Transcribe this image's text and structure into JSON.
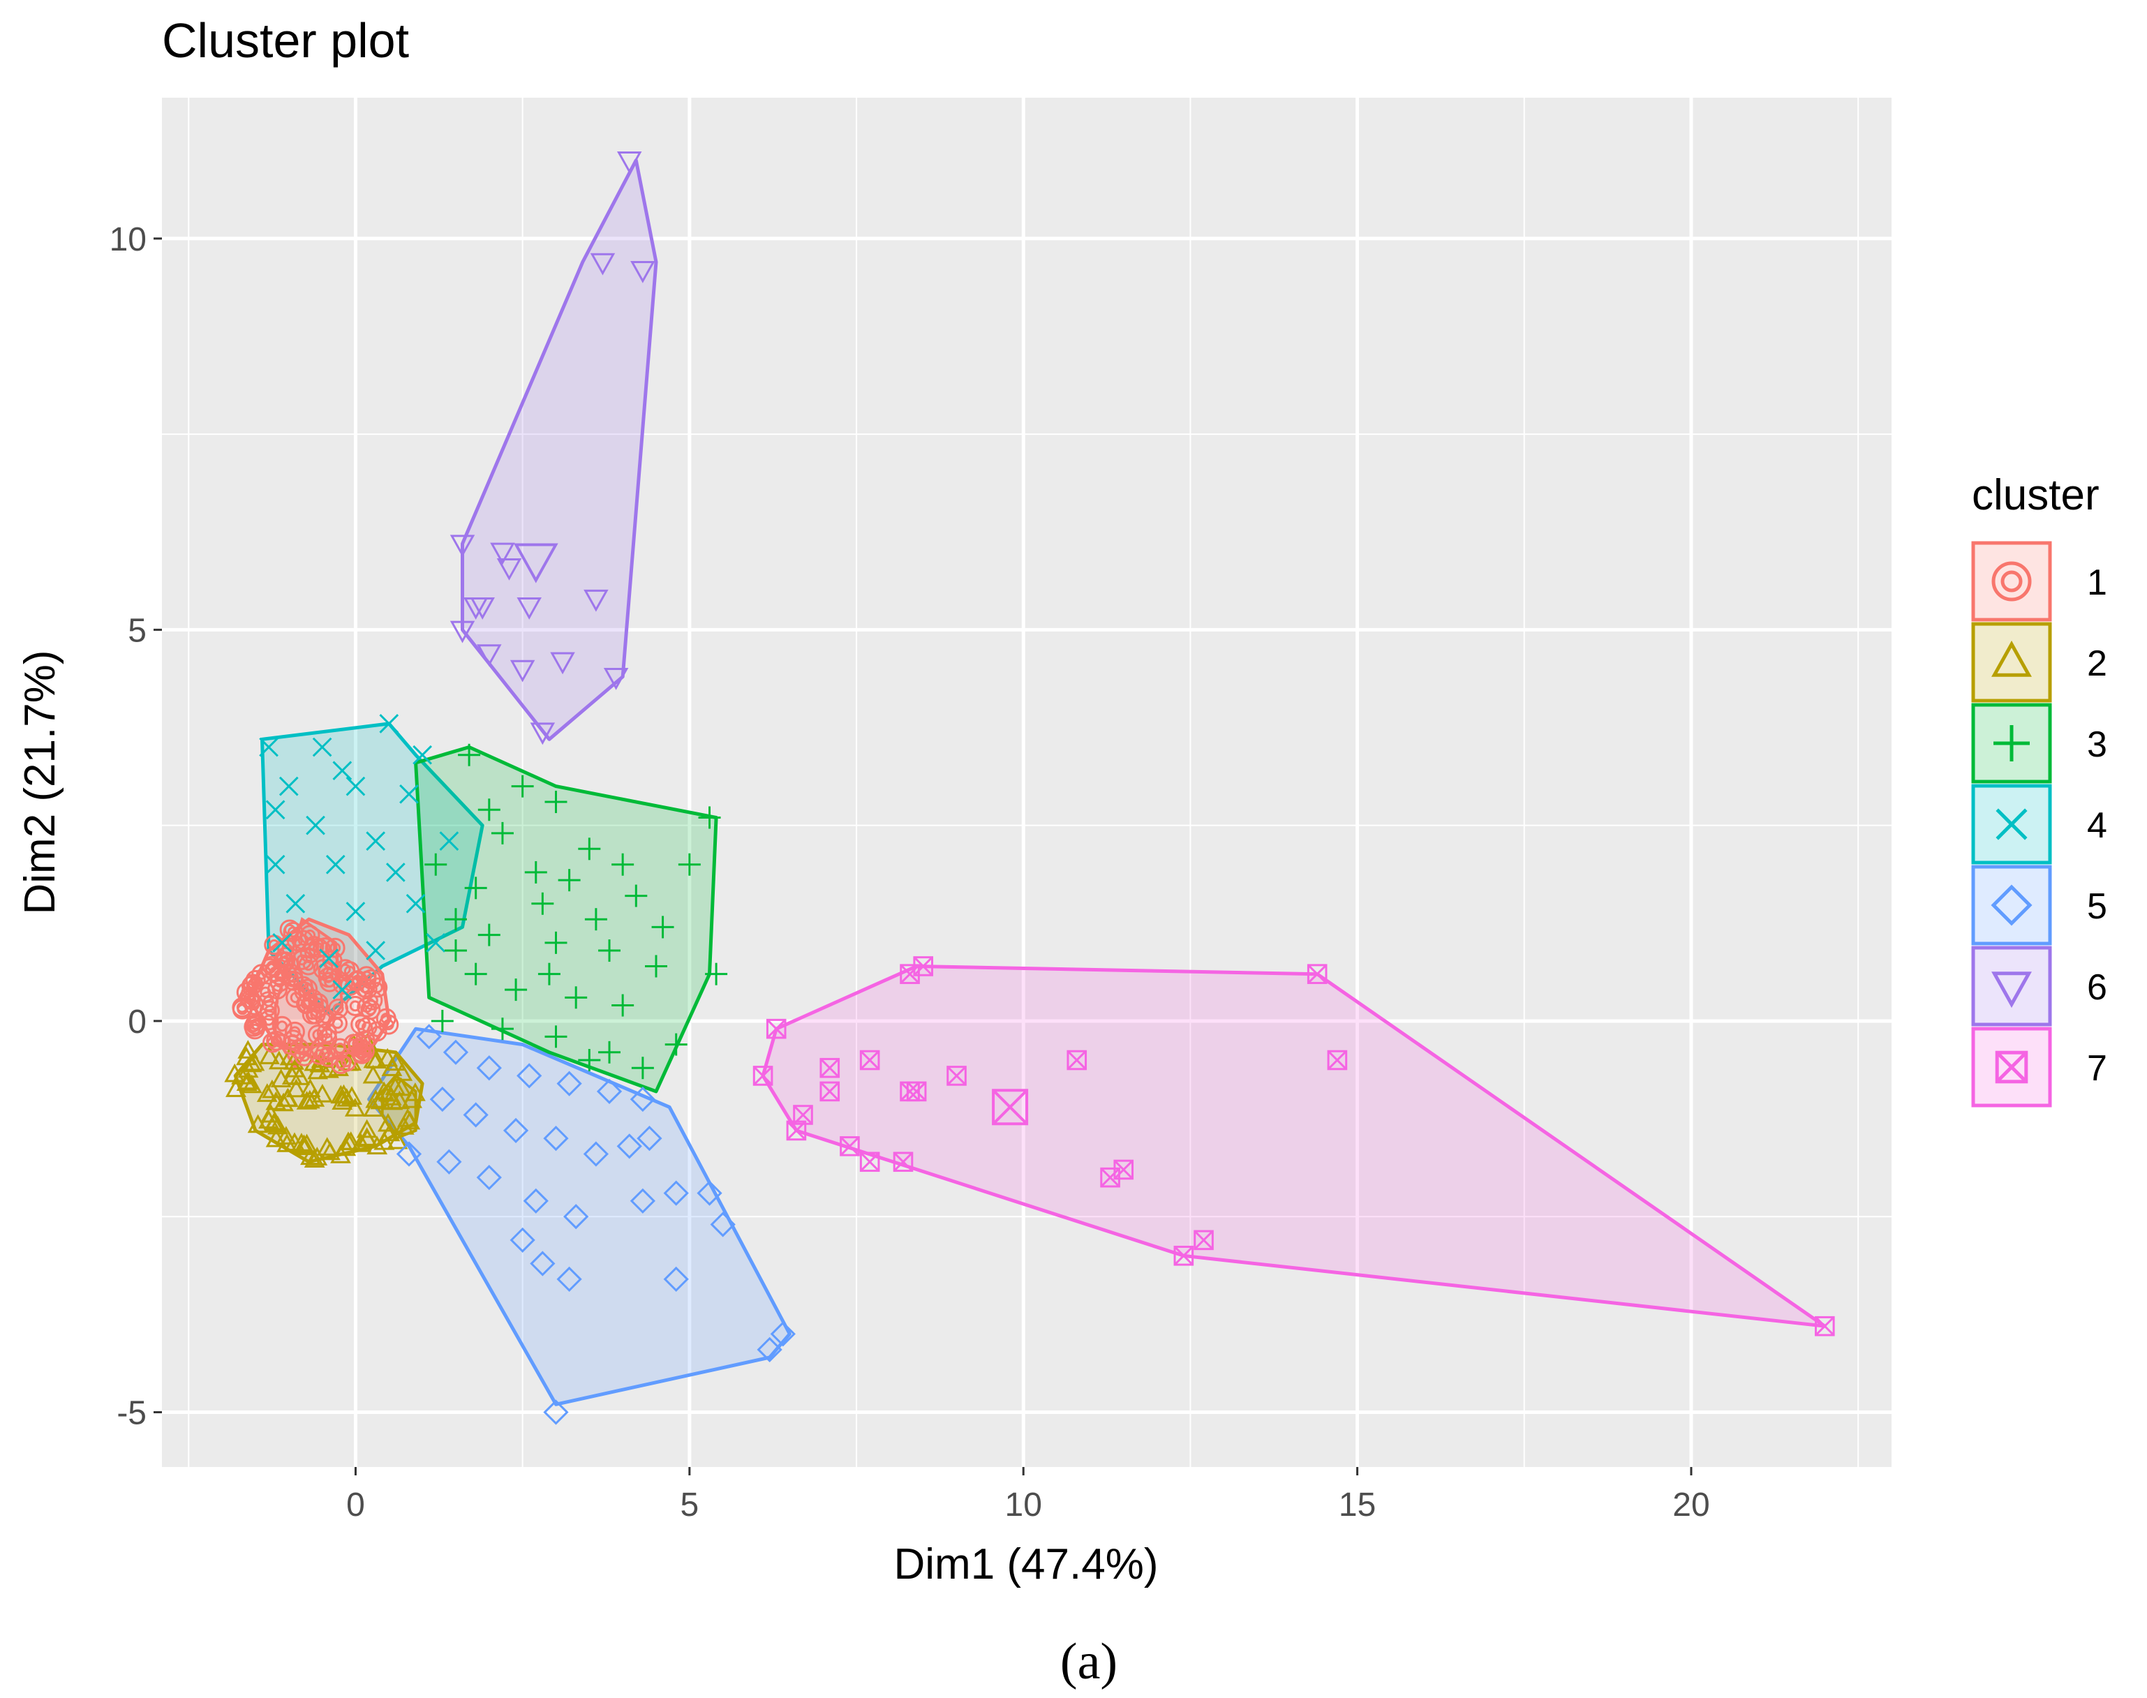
{
  "chart_data": {
    "type": "scatter",
    "title": "Cluster plot",
    "xlabel": "Dim1 (47.4%)",
    "ylabel": "Dim2 (21.7%)",
    "caption": "(a)",
    "xlim": [
      -2.9,
      23.0
    ],
    "ylim": [
      -5.7,
      11.8
    ],
    "x_ticks": [
      0,
      5,
      10,
      15,
      20
    ],
    "x_tick_labels": [
      "0",
      "5",
      "10",
      "15",
      "20"
    ],
    "y_ticks": [
      -5,
      0,
      5,
      10
    ],
    "y_tick_labels": [
      "-5",
      "0",
      "5",
      "10"
    ],
    "grid": true,
    "legend": {
      "title": "cluster",
      "position": "right",
      "labels": [
        "1",
        "2",
        "3",
        "4",
        "5",
        "6",
        "7"
      ]
    },
    "series": [
      {
        "name": "1",
        "color": "#F8766D",
        "shape": "circle-ring",
        "dense": true,
        "points": [
          [
            -1.4,
            0.4
          ],
          [
            -1.2,
            0.7
          ],
          [
            -1.0,
            0.9
          ],
          [
            -0.8,
            1.1
          ],
          [
            -0.5,
            0.8
          ],
          [
            -0.3,
            0.6
          ],
          [
            0.0,
            0.5
          ],
          [
            0.2,
            0.3
          ],
          [
            0.3,
            0.0
          ],
          [
            0.1,
            -0.3
          ],
          [
            -0.2,
            -0.4
          ],
          [
            -0.6,
            -0.3
          ],
          [
            -1.0,
            -0.2
          ],
          [
            -1.3,
            0.0
          ],
          [
            -1.5,
            0.2
          ],
          [
            -0.7,
            0.3
          ],
          [
            -0.4,
            0.1
          ],
          [
            -0.9,
            0.5
          ]
        ],
        "hull": [
          [
            -1.6,
            0.3
          ],
          [
            -1.3,
            0.9
          ],
          [
            -0.7,
            1.3
          ],
          [
            -0.1,
            1.1
          ],
          [
            0.4,
            0.6
          ],
          [
            0.5,
            0.0
          ],
          [
            0.2,
            -0.4
          ],
          [
            -0.5,
            -0.5
          ],
          [
            -1.2,
            -0.3
          ]
        ],
        "inner_hull": [
          [
            -1.2,
            0.2
          ],
          [
            -0.8,
            1.3
          ],
          [
            -0.3,
            1.0
          ],
          [
            -0.2,
            0.2
          ],
          [
            -0.9,
            -0.6
          ],
          [
            -1.2,
            -0.2
          ]
        ]
      },
      {
        "name": "2",
        "color": "#B79F00",
        "shape": "triangle",
        "dense": true,
        "points": [
          [
            -1.6,
            -0.8
          ],
          [
            -1.3,
            -1.2
          ],
          [
            -1.0,
            -1.5
          ],
          [
            -0.6,
            -1.7
          ],
          [
            -0.2,
            -1.6
          ],
          [
            0.2,
            -1.5
          ],
          [
            0.6,
            -1.4
          ],
          [
            0.8,
            -1.0
          ],
          [
            0.5,
            -0.6
          ],
          [
            0.1,
            -0.4
          ],
          [
            -0.4,
            -0.5
          ],
          [
            -0.9,
            -0.6
          ],
          [
            -1.4,
            -0.5
          ],
          [
            -0.7,
            -1.0
          ],
          [
            -0.2,
            -1.1
          ],
          [
            0.3,
            -1.0
          ],
          [
            -1.1,
            -0.9
          ]
        ],
        "hull": [
          [
            -1.8,
            -0.7
          ],
          [
            -1.5,
            -1.4
          ],
          [
            -0.7,
            -1.8
          ],
          [
            0.3,
            -1.6
          ],
          [
            0.9,
            -1.3
          ],
          [
            1.0,
            -0.8
          ],
          [
            0.6,
            -0.4
          ],
          [
            -0.4,
            -0.3
          ],
          [
            -1.4,
            -0.3
          ]
        ],
        "inner_hull": [
          [
            0.4,
            -0.9
          ],
          [
            0.6,
            -0.7
          ],
          [
            0.9,
            -0.9
          ],
          [
            0.9,
            -1.4
          ],
          [
            0.6,
            -1.5
          ],
          [
            0.4,
            -1.2
          ]
        ]
      },
      {
        "name": "3",
        "color": "#00BA38",
        "shape": "plus",
        "points": [
          [
            1.7,
            3.4
          ],
          [
            2.5,
            3.0
          ],
          [
            3.0,
            2.8
          ],
          [
            2.2,
            2.4
          ],
          [
            3.5,
            2.2
          ],
          [
            4.0,
            2.0
          ],
          [
            5.3,
            2.6
          ],
          [
            5.0,
            2.0
          ],
          [
            3.2,
            1.8
          ],
          [
            4.2,
            1.6
          ],
          [
            2.8,
            1.5
          ],
          [
            1.5,
            1.3
          ],
          [
            2.0,
            1.1
          ],
          [
            3.0,
            1.0
          ],
          [
            3.8,
            0.9
          ],
          [
            4.5,
            0.7
          ],
          [
            5.4,
            0.6
          ],
          [
            1.8,
            0.6
          ],
          [
            2.4,
            0.4
          ],
          [
            3.3,
            0.3
          ],
          [
            4.0,
            0.2
          ],
          [
            1.3,
            0.0
          ],
          [
            2.2,
            -0.1
          ],
          [
            3.0,
            -0.2
          ],
          [
            3.8,
            -0.4
          ],
          [
            4.8,
            -0.3
          ],
          [
            4.3,
            -0.6
          ],
          [
            3.5,
            -0.5
          ],
          [
            1.5,
            0.9
          ],
          [
            1.2,
            2.0
          ],
          [
            2.7,
            1.9
          ],
          [
            3.6,
            1.3
          ],
          [
            4.6,
            1.2
          ],
          [
            2.0,
            2.7
          ],
          [
            2.9,
            0.6
          ],
          [
            1.8,
            1.7
          ]
        ],
        "hull": [
          [
            0.9,
            3.3
          ],
          [
            1.7,
            3.5
          ],
          [
            3.0,
            3.0
          ],
          [
            5.4,
            2.6
          ],
          [
            5.3,
            0.6
          ],
          [
            4.5,
            -0.9
          ],
          [
            2.9,
            -0.4
          ],
          [
            1.1,
            0.3
          ]
        ]
      },
      {
        "name": "4",
        "color": "#00BFC4",
        "shape": "x",
        "points": [
          [
            -1.3,
            3.5
          ],
          [
            -0.5,
            3.5
          ],
          [
            0.5,
            3.8
          ],
          [
            -1.0,
            3.0
          ],
          [
            0.0,
            3.0
          ],
          [
            0.8,
            2.9
          ],
          [
            -0.6,
            2.5
          ],
          [
            0.3,
            2.3
          ],
          [
            -1.2,
            2.0
          ],
          [
            -0.3,
            2.0
          ],
          [
            0.6,
            1.9
          ],
          [
            1.4,
            2.3
          ],
          [
            -0.9,
            1.5
          ],
          [
            0.0,
            1.4
          ],
          [
            0.9,
            1.5
          ],
          [
            -1.1,
            1.0
          ],
          [
            -0.4,
            0.8
          ],
          [
            0.3,
            0.9
          ],
          [
            1.2,
            1.0
          ],
          [
            -0.2,
            0.4
          ],
          [
            -1.2,
            2.7
          ],
          [
            1.0,
            3.4
          ],
          [
            -0.2,
            3.2
          ]
        ],
        "hull": [
          [
            -1.4,
            3.6
          ],
          [
            0.5,
            3.8
          ],
          [
            0.9,
            3.4
          ],
          [
            1.9,
            2.5
          ],
          [
            1.6,
            1.2
          ],
          [
            0.4,
            0.7
          ],
          [
            -0.4,
            0.1
          ],
          [
            -1.3,
            0.9
          ]
        ]
      },
      {
        "name": "5",
        "color": "#619CFF",
        "shape": "diamond",
        "points": [
          [
            1.1,
            -0.2
          ],
          [
            1.5,
            -0.4
          ],
          [
            2.0,
            -0.6
          ],
          [
            2.6,
            -0.7
          ],
          [
            3.2,
            -0.8
          ],
          [
            3.8,
            -0.9
          ],
          [
            4.3,
            -1.0
          ],
          [
            1.3,
            -1.0
          ],
          [
            1.8,
            -1.2
          ],
          [
            2.4,
            -1.4
          ],
          [
            3.0,
            -1.5
          ],
          [
            3.6,
            -1.7
          ],
          [
            4.1,
            -1.6
          ],
          [
            1.4,
            -1.8
          ],
          [
            2.0,
            -2.0
          ],
          [
            2.7,
            -2.3
          ],
          [
            3.3,
            -2.5
          ],
          [
            4.3,
            -2.3
          ],
          [
            4.8,
            -2.2
          ],
          [
            5.5,
            -2.6
          ],
          [
            2.5,
            -2.8
          ],
          [
            3.2,
            -3.3
          ],
          [
            4.8,
            -3.3
          ],
          [
            2.8,
            -3.1
          ],
          [
            6.2,
            -4.2
          ],
          [
            6.4,
            -4.0
          ],
          [
            3.0,
            -5.0
          ],
          [
            4.4,
            -1.5
          ],
          [
            5.3,
            -2.2
          ],
          [
            0.8,
            -1.7
          ]
        ],
        "hull": [
          [
            0.2,
            -1.0
          ],
          [
            0.9,
            -0.1
          ],
          [
            2.5,
            -0.3
          ],
          [
            4.7,
            -1.1
          ],
          [
            6.5,
            -4.0
          ],
          [
            6.2,
            -4.3
          ],
          [
            3.0,
            -4.9
          ],
          [
            0.8,
            -1.6
          ]
        ]
      },
      {
        "name": "6",
        "color": "#9E76EB",
        "shape": "triangle-down",
        "large_point": [
          2.7,
          5.9
        ],
        "points": [
          [
            4.1,
            11.0
          ],
          [
            3.7,
            9.7
          ],
          [
            4.3,
            9.6
          ],
          [
            1.6,
            6.1
          ],
          [
            2.2,
            6.0
          ],
          [
            2.3,
            5.8
          ],
          [
            2.6,
            5.3
          ],
          [
            1.8,
            5.3
          ],
          [
            1.9,
            5.3
          ],
          [
            3.6,
            5.4
          ],
          [
            1.6,
            5.0
          ],
          [
            2.0,
            4.7
          ],
          [
            2.5,
            4.5
          ],
          [
            3.1,
            4.6
          ],
          [
            3.9,
            4.4
          ],
          [
            2.8,
            3.7
          ]
        ],
        "hull": [
          [
            4.2,
            11.0
          ],
          [
            4.5,
            9.7
          ],
          [
            4.0,
            4.4
          ],
          [
            2.9,
            3.6
          ],
          [
            1.6,
            5.0
          ],
          [
            1.6,
            6.1
          ],
          [
            3.4,
            9.7
          ]
        ]
      },
      {
        "name": "7",
        "color": "#F564E3",
        "shape": "square-x",
        "large_point": [
          9.8,
          -1.1
        ],
        "points": [
          [
            8.3,
            0.6
          ],
          [
            8.5,
            0.7
          ],
          [
            14.4,
            0.6
          ],
          [
            6.3,
            -0.1
          ],
          [
            7.7,
            -0.5
          ],
          [
            7.1,
            -0.6
          ],
          [
            10.8,
            -0.5
          ],
          [
            14.7,
            -0.5
          ],
          [
            6.1,
            -0.7
          ],
          [
            9.0,
            -0.7
          ],
          [
            8.3,
            -0.9
          ],
          [
            8.4,
            -0.9
          ],
          [
            7.1,
            -0.9
          ],
          [
            6.7,
            -1.2
          ],
          [
            6.6,
            -1.4
          ],
          [
            7.4,
            -1.6
          ],
          [
            7.7,
            -1.8
          ],
          [
            8.2,
            -1.8
          ],
          [
            11.5,
            -1.9
          ],
          [
            11.3,
            -2.0
          ],
          [
            12.4,
            -3.0
          ],
          [
            12.7,
            -2.8
          ],
          [
            22.0,
            -3.9
          ]
        ],
        "hull": [
          [
            8.4,
            0.7
          ],
          [
            14.4,
            0.6
          ],
          [
            22.0,
            -3.9
          ],
          [
            12.4,
            -3.0
          ],
          [
            6.6,
            -1.4
          ],
          [
            6.1,
            -0.7
          ],
          [
            6.3,
            -0.1
          ]
        ]
      }
    ]
  }
}
